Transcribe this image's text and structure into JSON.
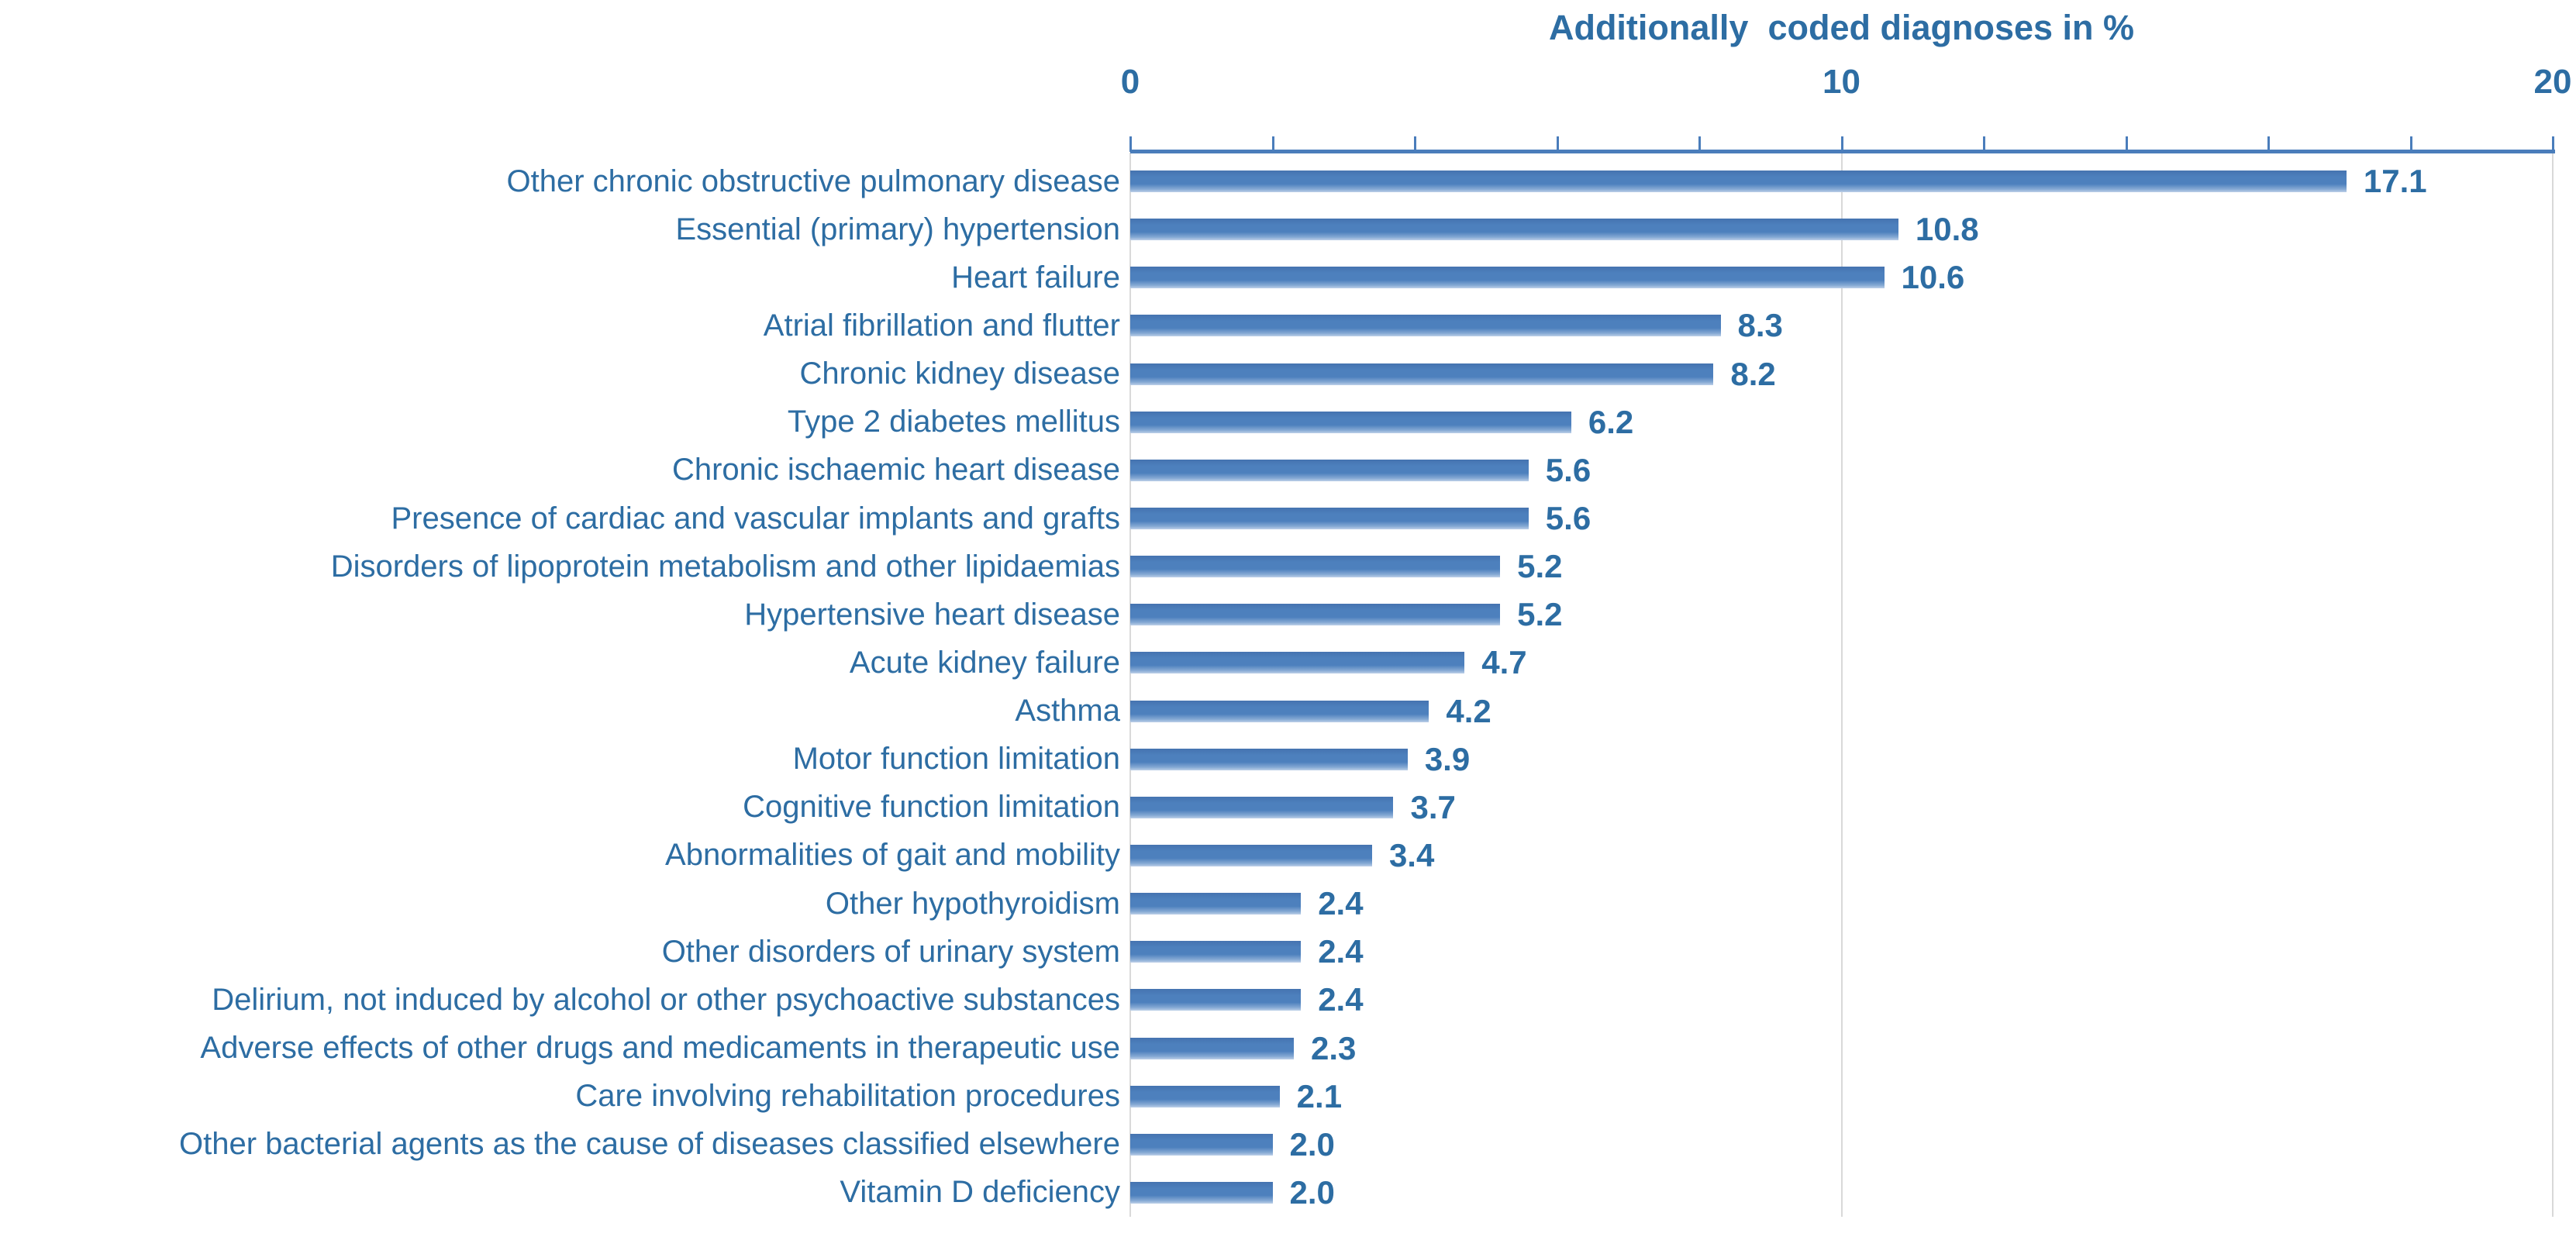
{
  "chart_data": {
    "type": "bar",
    "orientation": "horizontal",
    "title": "Additionally  coded diagnoses in %",
    "xlabel": "Additionally coded diagnoses in %",
    "xlim": [
      0,
      20
    ],
    "x_ticks": [
      0,
      10,
      20
    ],
    "x_minor_tick_step": 2,
    "grid_x_values": [
      0,
      10,
      20
    ],
    "legend": "none",
    "categories": [
      "Other chronic obstructive pulmonary disease",
      "Essential (primary) hypertension",
      "Heart failure",
      "Atrial fibrillation and flutter",
      "Chronic kidney disease",
      "Type 2 diabetes mellitus",
      "Chronic ischaemic heart disease",
      "Presence of cardiac and vascular implants and grafts",
      "Disorders of lipoprotein metabolism and other lipidaemias",
      "Hypertensive heart disease",
      "Acute kidney failure",
      "Asthma",
      "Motor function limitation",
      "Cognitive function limitation",
      "Abnormalities of gait and mobility",
      "Other hypothyroidism",
      "Other disorders of urinary system",
      "Delirium, not induced by alcohol or other psychoactive substances",
      "Adverse effects of other drugs and medicaments in therapeutic use",
      "Care involving rehabilitation procedures",
      "Other bacterial agents as the cause of diseases classified elsewhere",
      "Vitamin D deficiency"
    ],
    "values": [
      17.1,
      10.8,
      10.6,
      8.3,
      8.2,
      6.2,
      5.6,
      5.6,
      5.2,
      5.2,
      4.7,
      4.2,
      3.9,
      3.7,
      3.4,
      2.4,
      2.4,
      2.4,
      2.3,
      2.1,
      2.0,
      2.0
    ],
    "colors": {
      "bar": "#4d80bd",
      "bar_gradient_top": "#4573b0",
      "bar_gradient_bottom": "#bdd0e8",
      "text": "#2d6da3",
      "axis": "#4a7dbb",
      "gridline": "#d9d9d9",
      "background": "#ffffff"
    }
  }
}
